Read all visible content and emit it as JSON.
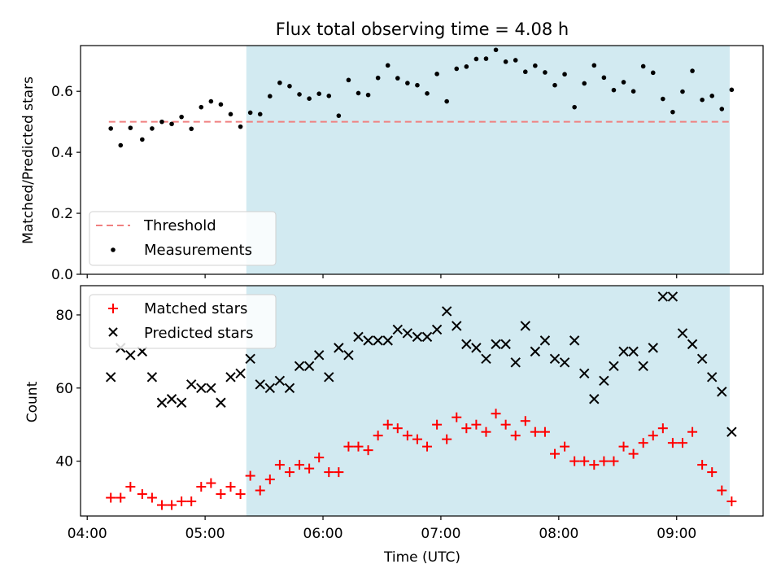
{
  "chart_data": [
    {
      "type": "scatter",
      "title": "Flux total observing time = 4.08 h",
      "ylabel": "Matched/Predicted stars",
      "xlim": [
        "04:00",
        "09:40"
      ],
      "ylim": [
        0,
        0.75
      ],
      "yticks": [
        0.0,
        0.2,
        0.4,
        0.6
      ],
      "ytick_labels": [
        "0.0",
        "0.2",
        "0.4",
        "0.6"
      ],
      "shaded_interval": [
        "05:21",
        "09:27"
      ],
      "colors": {
        "shade": "#add8e6",
        "threshold": "#f08080",
        "measurements": "#000000"
      },
      "legend": {
        "position": "lower-left",
        "entries": [
          "Threshold",
          "Measurements"
        ]
      },
      "threshold": {
        "name": "Threshold",
        "value": 0.5,
        "x_range": [
          "04:11",
          "09:27"
        ]
      },
      "series": [
        {
          "name": "Measurements",
          "marker": "dot",
          "points": [
            [
              "04:12",
              0.478
            ],
            [
              "04:17",
              0.423
            ],
            [
              "04:22",
              0.48
            ],
            [
              "04:28",
              0.442
            ],
            [
              "04:33",
              0.478
            ],
            [
              "04:38",
              0.5
            ],
            [
              "04:43",
              0.493
            ],
            [
              "04:48",
              0.516
            ],
            [
              "04:53",
              0.477
            ],
            [
              "04:58",
              0.548
            ],
            [
              "05:03",
              0.567
            ],
            [
              "05:08",
              0.557
            ],
            [
              "05:13",
              0.525
            ],
            [
              "05:18",
              0.484
            ],
            [
              "05:23",
              0.53
            ],
            [
              "05:28",
              0.525
            ],
            [
              "05:33",
              0.584
            ],
            [
              "05:38",
              0.628
            ],
            [
              "05:43",
              0.617
            ],
            [
              "05:48",
              0.59
            ],
            [
              "05:53",
              0.576
            ],
            [
              "05:58",
              0.592
            ],
            [
              "06:03",
              0.585
            ],
            [
              "06:08",
              0.52
            ],
            [
              "06:13",
              0.637
            ],
            [
              "06:18",
              0.594
            ],
            [
              "06:23",
              0.588
            ],
            [
              "06:28",
              0.644
            ],
            [
              "06:33",
              0.685
            ],
            [
              "06:38",
              0.643
            ],
            [
              "06:43",
              0.627
            ],
            [
              "06:48",
              0.62
            ],
            [
              "06:53",
              0.593
            ],
            [
              "06:58",
              0.657
            ],
            [
              "07:03",
              0.567
            ],
            [
              "07:08",
              0.674
            ],
            [
              "07:13",
              0.681
            ],
            [
              "07:18",
              0.706
            ],
            [
              "07:23",
              0.707
            ],
            [
              "07:28",
              0.736
            ],
            [
              "07:33",
              0.697
            ],
            [
              "07:38",
              0.702
            ],
            [
              "07:43",
              0.664
            ],
            [
              "07:48",
              0.684
            ],
            [
              "07:53",
              0.662
            ],
            [
              "07:58",
              0.62
            ],
            [
              "08:03",
              0.656
            ],
            [
              "08:08",
              0.548
            ],
            [
              "08:13",
              0.626
            ],
            [
              "08:18",
              0.685
            ],
            [
              "08:23",
              0.645
            ],
            [
              "08:28",
              0.604
            ],
            [
              "08:33",
              0.63
            ],
            [
              "08:38",
              0.6
            ],
            [
              "08:43",
              0.682
            ],
            [
              "08:48",
              0.661
            ],
            [
              "08:53",
              0.575
            ],
            [
              "08:58",
              0.532
            ],
            [
              "09:03",
              0.599
            ],
            [
              "09:08",
              0.667
            ],
            [
              "09:13",
              0.572
            ],
            [
              "09:18",
              0.585
            ],
            [
              "09:23",
              0.542
            ],
            [
              "09:28",
              0.605
            ]
          ]
        }
      ]
    },
    {
      "type": "scatter",
      "xlabel": "Time (UTC)",
      "ylabel": "Count",
      "xlim": [
        "04:00",
        "09:40"
      ],
      "ylim": [
        25,
        88
      ],
      "xticks": [
        "04:00",
        "05:00",
        "06:00",
        "07:00",
        "08:00",
        "09:00"
      ],
      "xtick_labels": [
        "04:00",
        "05:00",
        "06:00",
        "07:00",
        "08:00",
        "09:00"
      ],
      "yticks": [
        40,
        60,
        80
      ],
      "ytick_labels": [
        "40",
        "60",
        "80"
      ],
      "shaded_interval": [
        "05:21",
        "09:27"
      ],
      "colors": {
        "shade": "#add8e6",
        "matched": "#ff0000",
        "predicted": "#000000"
      },
      "legend": {
        "position": "upper-left",
        "entries": [
          "Matched stars",
          "Predicted stars"
        ]
      },
      "series": [
        {
          "name": "Matched stars",
          "marker": "plus",
          "points": [
            [
              "04:12",
              30
            ],
            [
              "04:17",
              30
            ],
            [
              "04:22",
              33
            ],
            [
              "04:28",
              31
            ],
            [
              "04:33",
              30
            ],
            [
              "04:38",
              28
            ],
            [
              "04:43",
              28
            ],
            [
              "04:48",
              29
            ],
            [
              "04:53",
              29
            ],
            [
              "04:58",
              33
            ],
            [
              "05:03",
              34
            ],
            [
              "05:08",
              31
            ],
            [
              "05:13",
              33
            ],
            [
              "05:18",
              31
            ],
            [
              "05:23",
              36
            ],
            [
              "05:28",
              32
            ],
            [
              "05:33",
              35
            ],
            [
              "05:38",
              39
            ],
            [
              "05:43",
              37
            ],
            [
              "05:48",
              39
            ],
            [
              "05:53",
              38
            ],
            [
              "05:58",
              41
            ],
            [
              "06:03",
              37
            ],
            [
              "06:08",
              37
            ],
            [
              "06:13",
              44
            ],
            [
              "06:18",
              44
            ],
            [
              "06:23",
              43
            ],
            [
              "06:28",
              47
            ],
            [
              "06:33",
              50
            ],
            [
              "06:38",
              49
            ],
            [
              "06:43",
              47
            ],
            [
              "06:48",
              46
            ],
            [
              "06:53",
              44
            ],
            [
              "06:58",
              50
            ],
            [
              "07:03",
              46
            ],
            [
              "07:08",
              52
            ],
            [
              "07:13",
              49
            ],
            [
              "07:18",
              50
            ],
            [
              "07:23",
              48
            ],
            [
              "07:28",
              53
            ],
            [
              "07:33",
              50
            ],
            [
              "07:38",
              47
            ],
            [
              "07:43",
              51
            ],
            [
              "07:48",
              48
            ],
            [
              "07:53",
              48
            ],
            [
              "07:58",
              42
            ],
            [
              "08:03",
              44
            ],
            [
              "08:08",
              40
            ],
            [
              "08:13",
              40
            ],
            [
              "08:18",
              39
            ],
            [
              "08:23",
              40
            ],
            [
              "08:28",
              40
            ],
            [
              "08:33",
              44
            ],
            [
              "08:38",
              42
            ],
            [
              "08:43",
              45
            ],
            [
              "08:48",
              47
            ],
            [
              "08:53",
              49
            ],
            [
              "08:58",
              45
            ],
            [
              "09:03",
              45
            ],
            [
              "09:08",
              48
            ],
            [
              "09:13",
              39
            ],
            [
              "09:18",
              37
            ],
            [
              "09:23",
              32
            ],
            [
              "09:28",
              29
            ]
          ]
        },
        {
          "name": "Predicted stars",
          "marker": "x",
          "points": [
            [
              "04:12",
              63
            ],
            [
              "04:17",
              71
            ],
            [
              "04:22",
              69
            ],
            [
              "04:28",
              70
            ],
            [
              "04:33",
              63
            ],
            [
              "04:38",
              56
            ],
            [
              "04:43",
              57
            ],
            [
              "04:48",
              56
            ],
            [
              "04:53",
              61
            ],
            [
              "04:58",
              60
            ],
            [
              "05:03",
              60
            ],
            [
              "05:08",
              56
            ],
            [
              "05:13",
              63
            ],
            [
              "05:18",
              64
            ],
            [
              "05:23",
              68
            ],
            [
              "05:28",
              61
            ],
            [
              "05:33",
              60
            ],
            [
              "05:38",
              62
            ],
            [
              "05:43",
              60
            ],
            [
              "05:48",
              66
            ],
            [
              "05:53",
              66
            ],
            [
              "05:58",
              69
            ],
            [
              "06:03",
              63
            ],
            [
              "06:08",
              71
            ],
            [
              "06:13",
              69
            ],
            [
              "06:18",
              74
            ],
            [
              "06:23",
              73
            ],
            [
              "06:28",
              73
            ],
            [
              "06:33",
              73
            ],
            [
              "06:38",
              76
            ],
            [
              "06:43",
              75
            ],
            [
              "06:48",
              74
            ],
            [
              "06:53",
              74
            ],
            [
              "06:58",
              76
            ],
            [
              "07:03",
              81
            ],
            [
              "07:08",
              77
            ],
            [
              "07:13",
              72
            ],
            [
              "07:18",
              71
            ],
            [
              "07:23",
              68
            ],
            [
              "07:28",
              72
            ],
            [
              "07:33",
              72
            ],
            [
              "07:38",
              67
            ],
            [
              "07:43",
              77
            ],
            [
              "07:48",
              70
            ],
            [
              "07:53",
              73
            ],
            [
              "07:58",
              68
            ],
            [
              "08:03",
              67
            ],
            [
              "08:08",
              73
            ],
            [
              "08:13",
              64
            ],
            [
              "08:18",
              57
            ],
            [
              "08:23",
              62
            ],
            [
              "08:28",
              66
            ],
            [
              "08:33",
              70
            ],
            [
              "08:38",
              70
            ],
            [
              "08:43",
              66
            ],
            [
              "08:48",
              71
            ],
            [
              "08:53",
              85
            ],
            [
              "08:58",
              85
            ],
            [
              "09:03",
              75
            ],
            [
              "09:08",
              72
            ],
            [
              "09:13",
              68
            ],
            [
              "09:18",
              63
            ],
            [
              "09:23",
              59
            ],
            [
              "09:28",
              48
            ]
          ]
        }
      ]
    }
  ]
}
